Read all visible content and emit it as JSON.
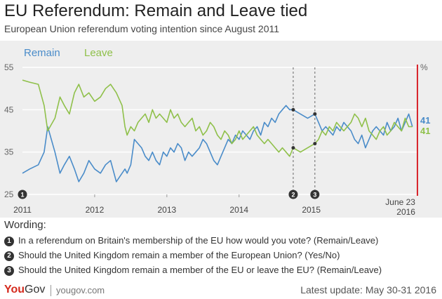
{
  "header": {
    "title": "EU Referendum: Remain and Leave tied",
    "subtitle": "European Union referendum voting intention since August 2011"
  },
  "colors": {
    "remain": "#4a8cc9",
    "leave": "#8fc04a",
    "event_line": "#d8232a",
    "background": "#eeeeee"
  },
  "chart_data": {
    "type": "line",
    "xlim": [
      2011.0,
      2016.48
    ],
    "ylim": [
      25,
      55
    ],
    "y_ticks": [
      25,
      35,
      45,
      55
    ],
    "y_unit": "%",
    "x_ticks": [
      {
        "label": "2011",
        "x": 2011.0
      },
      {
        "label": "2012",
        "x": 2012.0
      },
      {
        "label": "2013",
        "x": 2013.0
      },
      {
        "label": "2014",
        "x": 2014.0
      },
      {
        "label": "2015",
        "x": 2015.0
      }
    ],
    "event_label_line1": "June 23",
    "event_label_line2": "2016",
    "event_x": 2016.47,
    "markers": [
      {
        "num": "1",
        "x": 2011.0
      },
      {
        "num": "2",
        "x": 2014.75
      },
      {
        "num": "3",
        "x": 2015.05
      }
    ],
    "legend": [
      "Remain",
      "Leave"
    ],
    "series": [
      {
        "name": "Remain",
        "final_label": "41",
        "x": [
          2011.0,
          2011.1,
          2011.22,
          2011.3,
          2011.35,
          2011.45,
          2011.52,
          2011.58,
          2011.65,
          2011.72,
          2011.78,
          2011.85,
          2011.92,
          2012.0,
          2012.08,
          2012.15,
          2012.22,
          2012.3,
          2012.38,
          2012.42,
          2012.45,
          2012.5,
          2012.55,
          2012.6,
          2012.65,
          2012.7,
          2012.75,
          2012.8,
          2012.85,
          2012.9,
          2012.95,
          2013.0,
          2013.05,
          2013.1,
          2013.15,
          2013.2,
          2013.25,
          2013.3,
          2013.35,
          2013.4,
          2013.45,
          2013.5,
          2013.55,
          2013.6,
          2013.65,
          2013.7,
          2013.75,
          2013.8,
          2013.85,
          2013.9,
          2013.95,
          2014.0,
          2014.05,
          2014.1,
          2014.15,
          2014.2,
          2014.25,
          2014.3,
          2014.35,
          2014.4,
          2014.45,
          2014.5,
          2014.55,
          2014.6,
          2014.65,
          2014.7,
          2014.75,
          2014.85,
          2014.95,
          2015.05,
          2015.1,
          2015.15,
          2015.2,
          2015.25,
          2015.3,
          2015.35,
          2015.4,
          2015.45,
          2015.5,
          2015.55,
          2015.6,
          2015.65,
          2015.7,
          2015.75,
          2015.8,
          2015.85,
          2015.9,
          2015.95,
          2016.0,
          2016.05,
          2016.1,
          2016.15,
          2016.2,
          2016.25,
          2016.3,
          2016.35,
          2016.4
        ],
        "values": [
          30,
          31,
          32,
          35,
          41,
          35,
          30,
          32,
          34,
          31,
          28,
          30,
          33,
          31,
          30,
          32,
          33,
          28,
          30,
          31,
          30,
          32,
          38,
          37,
          36,
          34,
          33,
          35,
          33,
          32,
          35,
          34,
          36,
          35,
          37,
          36,
          33,
          35,
          34,
          35,
          36,
          38,
          37,
          35,
          33,
          32,
          34,
          36,
          38,
          37,
          39,
          38,
          40,
          39,
          38,
          40,
          41,
          39,
          42,
          41,
          43,
          42,
          44,
          45,
          46,
          45,
          45,
          44,
          43,
          44,
          42,
          40,
          41,
          40,
          39,
          41,
          40,
          42,
          41,
          40,
          38,
          37,
          39,
          36,
          38,
          40,
          41,
          40,
          39,
          42,
          40,
          41,
          43,
          40,
          42,
          44,
          41
        ]
      },
      {
        "name": "Leave",
        "final_label": "41",
        "x": [
          2011.0,
          2011.1,
          2011.22,
          2011.3,
          2011.35,
          2011.45,
          2011.52,
          2011.58,
          2011.65,
          2011.72,
          2011.78,
          2011.85,
          2011.92,
          2012.0,
          2012.08,
          2012.15,
          2012.22,
          2012.3,
          2012.38,
          2012.42,
          2012.45,
          2012.5,
          2012.55,
          2012.6,
          2012.65,
          2012.7,
          2012.75,
          2012.8,
          2012.85,
          2012.9,
          2012.95,
          2013.0,
          2013.05,
          2013.1,
          2013.15,
          2013.2,
          2013.25,
          2013.3,
          2013.35,
          2013.4,
          2013.45,
          2013.5,
          2013.55,
          2013.6,
          2013.65,
          2013.7,
          2013.75,
          2013.8,
          2013.85,
          2013.9,
          2013.95,
          2014.0,
          2014.05,
          2014.1,
          2014.15,
          2014.2,
          2014.25,
          2014.3,
          2014.35,
          2014.4,
          2014.45,
          2014.5,
          2014.55,
          2014.6,
          2014.65,
          2014.7,
          2014.75,
          2014.85,
          2014.95,
          2015.05,
          2015.1,
          2015.15,
          2015.2,
          2015.25,
          2015.3,
          2015.35,
          2015.4,
          2015.45,
          2015.5,
          2015.55,
          2015.6,
          2015.65,
          2015.7,
          2015.75,
          2015.8,
          2015.85,
          2015.9,
          2015.95,
          2016.0,
          2016.05,
          2016.1,
          2016.15,
          2016.2,
          2016.25,
          2016.3,
          2016.35,
          2016.4
        ],
        "values": [
          52,
          51.5,
          51,
          46,
          40,
          43,
          48,
          46,
          44,
          49,
          51,
          48,
          49,
          47,
          48,
          50,
          51,
          49,
          46,
          41,
          39,
          41,
          40,
          42,
          43,
          44,
          42,
          45,
          43,
          44,
          43,
          42,
          45,
          43,
          44,
          42,
          41,
          42,
          43,
          40,
          41,
          39,
          40,
          42,
          41,
          39,
          38,
          40,
          39,
          37,
          38,
          40,
          38,
          39,
          40,
          41,
          39,
          38,
          37,
          38,
          37,
          36,
          35,
          36,
          35,
          34,
          36,
          35,
          36,
          37,
          38,
          40,
          39,
          41,
          40,
          42,
          41,
          40,
          41,
          42,
          44,
          43,
          41,
          43,
          40,
          39,
          38,
          40,
          41,
          39,
          40,
          42,
          41,
          40,
          43,
          41,
          41
        ]
      }
    ]
  },
  "wording": {
    "title": "Wording:",
    "items": [
      {
        "num": "1",
        "text": "In a referendum on Britain's membership of the EU how would you vote? (Remain/Leave)"
      },
      {
        "num": "2",
        "text": "Should the United Kingdom remain a member of the European Union? (Yes/No)"
      },
      {
        "num": "3",
        "text": "Should the United Kingdom remain a member of the EU or leave the EU? (Remain/Leave)"
      }
    ]
  },
  "footer": {
    "logo_you": "You",
    "logo_gov": "Gov",
    "site": "yougov.com",
    "update": "Latest update: May 30-31 2016"
  }
}
